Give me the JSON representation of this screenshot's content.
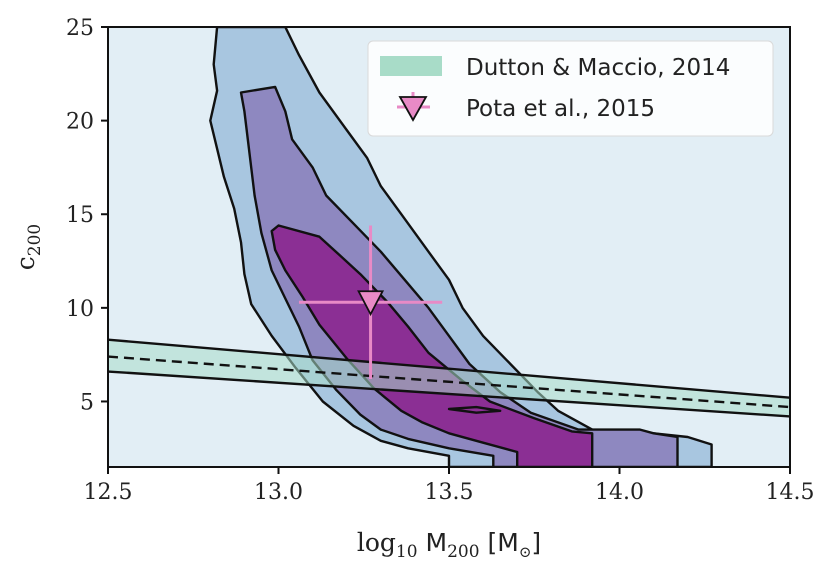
{
  "chart_data": {
    "type": "contour",
    "xlim": [
      12.5,
      14.5
    ],
    "ylim": [
      1.5,
      25
    ],
    "xticks": [
      12.5,
      13.0,
      13.5,
      14.0,
      14.5
    ],
    "xtick_labels": [
      "12.5",
      "13.0",
      "13.5",
      "14.0",
      "14.5"
    ],
    "yticks": [
      5,
      10,
      15,
      20,
      25
    ],
    "ytick_labels": [
      "5",
      "10",
      "15",
      "20",
      "25"
    ],
    "xlabel": {
      "pre": "log",
      "pre_sub": "10",
      "main": " M",
      "main_sub": "200",
      "unit": " [M",
      "unit_sub": "⊙",
      "close": "]"
    },
    "ylabel": {
      "main": "c",
      "sub": "200"
    },
    "grid": false,
    "legend": {
      "placement": "top-right",
      "entries": [
        {
          "label": "Dutton & Maccio, 2014",
          "marker": "band",
          "color": "#a8dcc8"
        },
        {
          "label": "Pota et al., 2015",
          "marker": "triangle-down",
          "color": "#e88ac6"
        }
      ]
    },
    "colors": {
      "background": "#e2eef5",
      "outer": "#a8c6e0",
      "middle": "#8e88c0",
      "inner": "#8b2f94",
      "band": "#a8dcc8",
      "point": "#e88ac6",
      "edge": "#111111"
    },
    "band": {
      "center": [
        [
          12.5,
          7.4
        ],
        [
          14.5,
          4.7
        ]
      ],
      "upper": [
        [
          12.5,
          8.3
        ],
        [
          14.5,
          5.2
        ]
      ],
      "lower": [
        [
          12.5,
          6.6
        ],
        [
          14.5,
          4.2
        ]
      ]
    },
    "contours": [
      {
        "level": "outer",
        "points": [
          [
            12.82,
            25
          ],
          [
            13.02,
            25
          ],
          [
            13.06,
            23.5
          ],
          [
            13.12,
            21.5
          ],
          [
            13.2,
            19.5
          ],
          [
            13.26,
            18
          ],
          [
            13.3,
            16.5
          ],
          [
            13.36,
            15
          ],
          [
            13.44,
            13
          ],
          [
            13.5,
            11.5
          ],
          [
            13.54,
            10
          ],
          [
            13.6,
            8.5
          ],
          [
            13.68,
            7
          ],
          [
            13.76,
            5.5
          ],
          [
            13.82,
            4.5
          ],
          [
            13.94,
            3.3
          ],
          [
            14.1,
            3.3
          ],
          [
            14.2,
            3.1
          ],
          [
            14.27,
            2.7
          ],
          [
            14.27,
            1.5
          ],
          [
            13.5,
            1.5
          ],
          [
            13.5,
            2.1
          ],
          [
            13.38,
            2.5
          ],
          [
            13.3,
            2.9
          ],
          [
            13.22,
            3.7
          ],
          [
            13.13,
            5
          ],
          [
            13.05,
            6.8
          ],
          [
            12.98,
            8.5
          ],
          [
            12.92,
            10.2
          ],
          [
            12.9,
            11.8
          ],
          [
            12.89,
            13.5
          ],
          [
            12.87,
            15.3
          ],
          [
            12.84,
            17
          ],
          [
            12.82,
            18.5
          ],
          [
            12.8,
            20
          ],
          [
            12.82,
            21.6
          ],
          [
            12.81,
            23
          ]
        ]
      },
      {
        "level": "middle",
        "points": [
          [
            12.89,
            21.5
          ],
          [
            12.99,
            21.8
          ],
          [
            13.02,
            20.5
          ],
          [
            13.04,
            19
          ],
          [
            13.1,
            17.5
          ],
          [
            13.14,
            16
          ],
          [
            13.22,
            14.5
          ],
          [
            13.3,
            13
          ],
          [
            13.37,
            11.5
          ],
          [
            13.44,
            10
          ],
          [
            13.5,
            8.5
          ],
          [
            13.56,
            7
          ],
          [
            13.65,
            5.5
          ],
          [
            13.74,
            4.4
          ],
          [
            13.88,
            3.5
          ],
          [
            14.06,
            3.5
          ],
          [
            14.1,
            3.3
          ],
          [
            14.17,
            3.1
          ],
          [
            14.17,
            1.5
          ],
          [
            13.63,
            1.5
          ],
          [
            13.63,
            2.1
          ],
          [
            13.5,
            2.5
          ],
          [
            13.38,
            3
          ],
          [
            13.3,
            3.5
          ],
          [
            13.24,
            4.3
          ],
          [
            13.17,
            5.6
          ],
          [
            13.1,
            7.2
          ],
          [
            13.06,
            9
          ],
          [
            13.02,
            10.5
          ],
          [
            12.98,
            12
          ],
          [
            12.95,
            14
          ],
          [
            12.93,
            16
          ],
          [
            12.92,
            17.5
          ],
          [
            12.91,
            19
          ],
          [
            12.9,
            20.5
          ]
        ]
      },
      {
        "level": "inner",
        "points": [
          [
            12.98,
            14.1
          ],
          [
            13.0,
            14.4
          ],
          [
            13.12,
            13.8
          ],
          [
            13.18,
            12.8
          ],
          [
            13.24,
            11.8
          ],
          [
            13.32,
            10.3
          ],
          [
            13.38,
            9
          ],
          [
            13.44,
            7.6
          ],
          [
            13.54,
            6.1
          ],
          [
            13.62,
            5
          ],
          [
            13.75,
            4.1
          ],
          [
            13.86,
            3.4
          ],
          [
            13.92,
            3.3
          ],
          [
            13.92,
            1.5
          ],
          [
            13.7,
            1.5
          ],
          [
            13.7,
            2.3
          ],
          [
            13.6,
            2.8
          ],
          [
            13.5,
            3.3
          ],
          [
            13.42,
            3.9
          ],
          [
            13.36,
            4.5
          ],
          [
            13.28,
            5.7
          ],
          [
            13.2,
            7.3
          ],
          [
            13.12,
            9.1
          ],
          [
            13.07,
            10.6
          ],
          [
            13.02,
            12
          ],
          [
            12.99,
            13.1
          ]
        ]
      },
      {
        "level": "inner",
        "points": [
          [
            13.5,
            4.6
          ],
          [
            13.58,
            4.7
          ],
          [
            13.65,
            4.5
          ],
          [
            13.58,
            4.4
          ]
        ]
      }
    ],
    "points": [
      {
        "label": "Pota et al., 2015",
        "x": 13.27,
        "y": 10.3,
        "xerr": [
          13.06,
          13.48
        ],
        "yerr": [
          6.2,
          14.4
        ]
      }
    ]
  }
}
